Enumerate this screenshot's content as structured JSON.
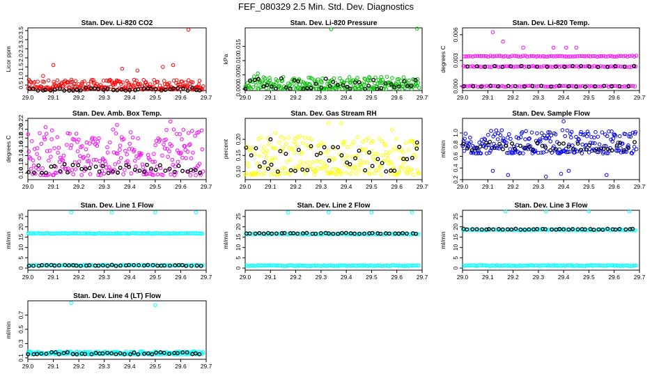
{
  "page_title": "FEF_080329  2.5 Min. Std. Dev. Diagnostics",
  "chart_data": [
    {
      "type": "scatter",
      "title": "Stan. Dev. Li-820 CO2",
      "ylabel": "Licor ppm",
      "xlim": [
        29.0,
        29.7
      ],
      "ylim": [
        0.2,
        3.65
      ],
      "xticks": [
        "29.0",
        "29.1",
        "29.2",
        "29.3",
        "29.4",
        "29.5",
        "29.6",
        "29.7"
      ],
      "yticks": [
        "0.5",
        "1.0",
        "1.5",
        "2.0",
        "2.5",
        "3.0",
        "3.5"
      ],
      "series": [
        {
          "color": "#ff0000",
          "band": [
            0.25,
            0.8
          ],
          "spikes": [
            [
              29.1,
              1.6
            ],
            [
              29.06,
              1.0
            ],
            [
              29.37,
              1.4
            ],
            [
              29.43,
              1.3
            ],
            [
              29.53,
              1.5
            ],
            [
              29.57,
              1.6
            ],
            [
              29.63,
              3.55
            ]
          ]
        },
        {
          "color": "#000000",
          "band": [
            0.2,
            0.35
          ],
          "spikes": []
        }
      ]
    },
    {
      "type": "scatter",
      "title": "Stan. Dev. Li-820 Pressure",
      "ylabel": "kPa",
      "xlim": [
        29.0,
        29.7
      ],
      "ylim": [
        -0.0005,
        0.0215
      ],
      "xticks": [
        "29.0",
        "29.1",
        "29.2",
        "29.3",
        "29.4",
        "29.5",
        "29.6",
        "29.7"
      ],
      "yticks": [
        "0.000",
        "0.005",
        "0.010",
        "0.015"
      ],
      "series": [
        {
          "color": "#00c000",
          "band": [
            0.0,
            0.0045
          ],
          "spikes": [
            [
              29.34,
              0.021
            ],
            [
              29.68,
              0.0212
            ],
            [
              29.05,
              0.0055
            ]
          ]
        },
        {
          "color": "#000000",
          "band": [
            0.0,
            0.004
          ],
          "spikes": []
        }
      ]
    },
    {
      "type": "scatter",
      "title": "Stan. Dev. Li-820 Temp.",
      "ylabel": "degrees C",
      "xlim": [
        29.0,
        29.7
      ],
      "ylim": [
        -0.0005,
        0.0068
      ],
      "xticks": [
        "29.0",
        "29.1",
        "29.2",
        "29.3",
        "29.4",
        "29.5",
        "29.6",
        "29.7"
      ],
      "yticks": [
        "0.000",
        "0.003",
        "0.006"
      ],
      "series": [
        {
          "color": "#ff00ff",
          "levels": [
            0.0,
            0.0023,
            0.0035
          ],
          "spikes": [
            [
              29.12,
              0.0063
            ],
            [
              29.16,
              0.0052
            ],
            [
              29.24,
              0.0045
            ],
            [
              29.36,
              0.0045
            ],
            [
              29.41,
              0.0045
            ],
            [
              29.45,
              0.0045
            ]
          ]
        },
        {
          "color": "#000000",
          "levels": [
            0.0,
            0.0023
          ],
          "spikes": []
        }
      ]
    },
    {
      "type": "scatter",
      "title": "Stan. Dev. Amb. Box Temp.",
      "ylabel": "degrees C",
      "xlim": [
        29.0,
        29.7
      ],
      "ylim": [
        0.085,
        0.225
      ],
      "xticks": [
        "29.0",
        "29.1",
        "29.2",
        "29.3",
        "29.4",
        "29.5",
        "29.6",
        "29.7"
      ],
      "yticks": [
        "0.10",
        "0.12",
        "0.14",
        "0.16",
        "0.18",
        "0.20",
        "0.22"
      ],
      "series": [
        {
          "color": "#ff00ff",
          "band": [
            0.095,
            0.2
          ],
          "spikes": [
            [
              29.56,
              0.218
            ],
            [
              29.35,
              0.21
            ],
            [
              29.07,
              0.205
            ]
          ]
        },
        {
          "color": "#000000",
          "band": [
            0.1,
            0.12
          ],
          "spikes": []
        }
      ]
    },
    {
      "type": "scatter",
      "title": "Stan. Dev. Gas Stream RH",
      "ylabel": "percent",
      "xlim": [
        29.0,
        29.7
      ],
      "ylim": [
        0.075,
        0.265
      ],
      "xticks": [
        "29.0",
        "29.1",
        "29.2",
        "29.3",
        "29.4",
        "29.5",
        "29.6",
        "29.7"
      ],
      "yticks": [
        "0.10",
        "0.15",
        "0.20"
      ],
      "series": [
        {
          "color": "#ffff00",
          "band": [
            0.09,
            0.21
          ],
          "spikes": [
            [
              29.33,
              0.25
            ],
            [
              29.38,
              0.25
            ],
            [
              29.58,
              0.23
            ],
            [
              29.12,
              0.22
            ]
          ]
        },
        {
          "color": "#000000",
          "band": [
            0.1,
            0.18
          ],
          "spikes": [
            [
              29.1,
              0.2
            ],
            [
              29.68,
              0.19
            ]
          ]
        }
      ]
    },
    {
      "type": "scatter",
      "title": "Stan. Dev. Sample Flow",
      "ylabel": "ml/min",
      "xlim": [
        29.0,
        29.7
      ],
      "ylim": [
        0.2,
        1.25
      ],
      "xticks": [
        "29.0",
        "29.1",
        "29.2",
        "29.3",
        "29.4",
        "29.5",
        "29.6",
        "29.7"
      ],
      "yticks": [
        "0.2",
        "0.4",
        "0.6",
        "0.8",
        "1.0"
      ],
      "series": [
        {
          "color": "#0000ff",
          "band": [
            0.65,
            1.05
          ],
          "spikes": [
            [
              29.4,
              1.2
            ],
            [
              29.39,
              0.3
            ],
            [
              29.42,
              0.35
            ],
            [
              29.57,
              0.28
            ],
            [
              29.12,
              0.35
            ],
            [
              29.33,
              0.25
            ],
            [
              29.18,
              0.28
            ]
          ]
        },
        {
          "color": "#000000",
          "band": [
            0.7,
            0.85
          ],
          "spikes": []
        }
      ]
    },
    {
      "type": "scatter",
      "title": "Stan. Dev. Line 1 Flow",
      "ylabel": "ml/min",
      "xlim": [
        29.0,
        29.7
      ],
      "ylim": [
        -1,
        28
      ],
      "xticks": [
        "29.0",
        "29.1",
        "29.2",
        "29.3",
        "29.4",
        "29.5",
        "29.6",
        "29.7"
      ],
      "yticks": [
        "0",
        "5",
        "10",
        "15",
        "20",
        "25"
      ],
      "series": [
        {
          "color": "#00ffff",
          "levels": [
            16.8,
            1.3
          ],
          "spikes": [
            [
              29.17,
              27
            ],
            [
              29.33,
              27
            ],
            [
              29.5,
              27
            ],
            [
              29.66,
              27
            ]
          ]
        },
        {
          "color": "#000000",
          "levels": [
            1.3
          ],
          "spikes": []
        }
      ]
    },
    {
      "type": "scatter",
      "title": "Stan. Dev. Line 2 Flow",
      "ylabel": "ml/min",
      "xlim": [
        29.0,
        29.7
      ],
      "ylim": [
        -1,
        28
      ],
      "xticks": [
        "29.0",
        "29.1",
        "29.2",
        "29.3",
        "29.4",
        "29.5",
        "29.6",
        "29.7"
      ],
      "yticks": [
        "0",
        "5",
        "10",
        "15",
        "20",
        "25"
      ],
      "series": [
        {
          "color": "#00ffff",
          "levels": [
            16.5,
            1.2
          ],
          "spikes": [
            [
              29.17,
              27
            ],
            [
              29.33,
              27
            ],
            [
              29.5,
              27
            ],
            [
              29.66,
              27
            ]
          ]
        },
        {
          "color": "#000000",
          "levels": [
            16.8
          ],
          "spikes": []
        }
      ]
    },
    {
      "type": "scatter",
      "title": "Stan. Dev. Line 3 Flow",
      "ylabel": "ml/min",
      "xlim": [
        29.0,
        29.7
      ],
      "ylim": [
        -1,
        28
      ],
      "xticks": [
        "29.0",
        "29.1",
        "29.2",
        "29.3",
        "29.4",
        "29.5",
        "29.6",
        "29.7"
      ],
      "yticks": [
        "0",
        "5",
        "10",
        "15",
        "20",
        "25"
      ],
      "series": [
        {
          "color": "#00ffff",
          "levels": [
            18.5,
            1.2
          ],
          "spikes": [
            [
              29.17,
              27.5
            ],
            [
              29.33,
              27.5
            ],
            [
              29.5,
              27.5
            ],
            [
              29.66,
              27.5
            ]
          ]
        },
        {
          "color": "#000000",
          "levels": [
            18.8
          ],
          "spikes": []
        }
      ]
    },
    {
      "type": "scatter",
      "title": "Stan. Dev. Line 4 (LT) Flow",
      "ylabel": "ml/min",
      "xlim": [
        29.0,
        29.7
      ],
      "ylim": [
        0.08,
        0.9
      ],
      "xticks": [
        "29.0",
        "29.1",
        "29.2",
        "29.3",
        "29.4",
        "29.5",
        "29.6",
        "29.7"
      ],
      "yticks": [
        "0.1",
        "0.3",
        "0.5",
        "0.7"
      ],
      "series": [
        {
          "color": "#00ffff",
          "band": [
            0.15,
            0.19
          ],
          "spikes": [
            [
              29.17,
              0.87
            ],
            [
              29.5,
              0.84
            ]
          ]
        },
        {
          "color": "#000000",
          "band": [
            0.15,
            0.18
          ],
          "spikes": []
        }
      ]
    }
  ]
}
